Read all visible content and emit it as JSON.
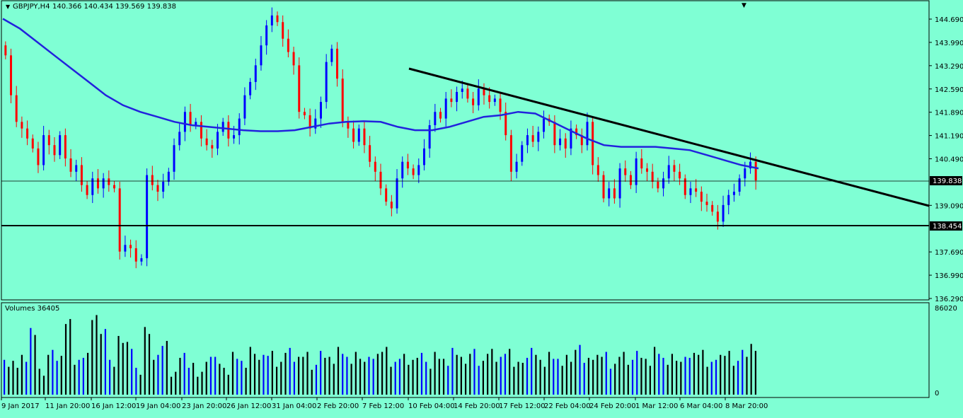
{
  "header": {
    "symbol_timeframe": "GBPJPY,H4",
    "ohlc": "140.366 140.434 139.569 139.838"
  },
  "volumes_label": "Volumes 36405",
  "colors": {
    "background": "#7FFFD4",
    "bull": "#0000FF",
    "bear": "#FF0000",
    "moving_average": "#2222DD",
    "trendline": "#000000",
    "grid_frame": "#000000"
  },
  "price_axis": {
    "ticks": [
      "144.690",
      "143.990",
      "143.290",
      "142.590",
      "141.890",
      "141.190",
      "140.490",
      "139.090",
      "137.690",
      "136.990",
      "136.290"
    ],
    "current_price_tag": "139.838",
    "support_tag": "138.454",
    "ylim": [
      136.29,
      145.0
    ]
  },
  "volume_axis": {
    "max_label": "86020",
    "min_label": "0"
  },
  "time_axis": {
    "labels": [
      "9 Jan 2017",
      "11 Jan 20:00",
      "16 Jan 12:00",
      "19 Jan 04:00",
      "23 Jan 20:00",
      "26 Jan 12:00",
      "31 Jan 04:00",
      "2 Feb 20:00",
      "7 Feb 12:00",
      "10 Feb 04:00",
      "14 Feb 20:00",
      "17 Feb 12:00",
      "22 Feb 04:00",
      "24 Feb 20:00",
      "1 Mar 12:00",
      "6 Mar 04:00",
      "8 Mar 20:00"
    ]
  },
  "chart_data": {
    "type": "candlestick",
    "title": "GBPJPY,H4",
    "ylim": [
      136.29,
      145.0
    ],
    "series": [
      {
        "kind": "price",
        "values": [
          143.6,
          142.4,
          141.6,
          141.4,
          141.1,
          140.8,
          140.3,
          141.2,
          140.9,
          140.6,
          141.2,
          140.5,
          140.1,
          140.3,
          139.7,
          139.4,
          139.9,
          139.6,
          139.9,
          139.7,
          139.6,
          137.7,
          137.9,
          137.8,
          137.4,
          137.5,
          140.0,
          139.7,
          139.5,
          139.8,
          140.1,
          140.9,
          141.3,
          141.9,
          141.5,
          141.6,
          141.1,
          140.9,
          140.8,
          141.3,
          141.6,
          141.1,
          141.2,
          141.7,
          142.4,
          142.8,
          143.3,
          143.9,
          144.5,
          144.8,
          144.6,
          144.1,
          143.7,
          143.3,
          141.9,
          141.8,
          141.4,
          141.7,
          142.2,
          143.4,
          143.8,
          142.9,
          141.6,
          141.4,
          141.0,
          141.4,
          140.9,
          140.4,
          140.1,
          139.6,
          139.2,
          139.0,
          139.9,
          140.4,
          140.2,
          140.0,
          140.3,
          140.8,
          141.5,
          141.9,
          141.7,
          142.3,
          142.2,
          142.5,
          142.6,
          142.3,
          142.1,
          142.6,
          142.4,
          142.2,
          142.3,
          141.9,
          141.2,
          140.1,
          140.4,
          140.9,
          141.2,
          141.0,
          141.3,
          141.7,
          141.6,
          140.9,
          141.1,
          140.8,
          141.4,
          141.2,
          140.9,
          141.6,
          140.3,
          140.0,
          139.3,
          139.6,
          139.3,
          140.2,
          140.0,
          139.7,
          140.5,
          140.2,
          140.1,
          139.8,
          139.6,
          139.9,
          140.3,
          140.1,
          139.9,
          139.4,
          139.6,
          139.5,
          139.2,
          139.1,
          138.9,
          138.6,
          139.1,
          139.4,
          139.5,
          139.9,
          140.2,
          140.4,
          139.84
        ]
      },
      {
        "kind": "moving_average",
        "values": [
          144.7,
          144.4,
          144.0,
          143.6,
          143.2,
          142.8,
          142.4,
          142.1,
          141.9,
          141.75,
          141.6,
          141.5,
          141.45,
          141.4,
          141.35,
          141.32,
          141.32,
          141.35,
          141.45,
          141.55,
          141.6,
          141.62,
          141.6,
          141.45,
          141.35,
          141.35,
          141.45,
          141.6,
          141.75,
          141.8,
          141.9,
          141.85,
          141.6,
          141.35,
          141.1,
          140.9,
          140.85,
          140.85,
          140.85,
          140.8,
          140.75,
          140.6,
          140.45,
          140.3,
          140.2
        ]
      },
      {
        "kind": "volume",
        "values": [
          35,
          35,
          42,
          70,
          30,
          45,
          40,
          78,
          38,
          46,
          85,
          72,
          35,
          60,
          55,
          30,
          72,
          40,
          55,
          25,
          45,
          36,
          28,
          44,
          38,
          28,
          45,
          37,
          52,
          40,
          45,
          35,
          50,
          42,
          48,
          36,
          44,
          39,
          50,
          41,
          47,
          38,
          42,
          50,
          36,
          45,
          40,
          48,
          33,
          44,
          38,
          50,
          42,
          46,
          35,
          48,
          41,
          50,
          38,
          43,
          47,
          36,
          45,
          39,
          44,
          50,
          38,
          42,
          46,
          35,
          48,
          41,
          44,
          37,
          50,
          40,
          45,
          38,
          43,
          47,
          36,
          44,
          49,
          40,
          45,
          52
        ]
      }
    ]
  }
}
